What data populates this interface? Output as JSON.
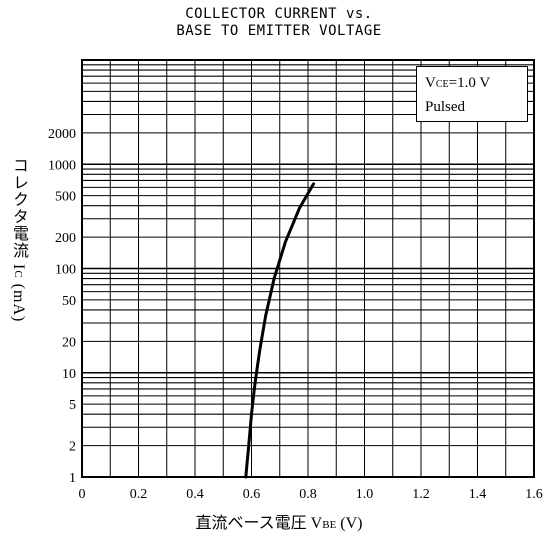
{
  "chart_data": {
    "type": "line",
    "title_line1": "COLLECTOR CURRENT vs.",
    "title_line2": "BASE TO EMITTER VOLTAGE",
    "ylabel_text": "コレクタ電流 I",
    "ylabel_sub": "C",
    "ylabel_unit": " (mA)",
    "xlabel_text": "直流ベース電圧 V",
    "xlabel_sub": "BE",
    "xlabel_unit": " (V)",
    "legend_v": "V",
    "legend_sub": "CE",
    "legend_value": "=1.0 V",
    "legend_pulsed": "Pulsed",
    "legend_position": "top-right",
    "y_scale": "log",
    "grid": true,
    "xlim": [
      0,
      1.6
    ],
    "ylim": [
      1,
      10000
    ],
    "x_ticks": [
      "0",
      "0.2",
      "0.4",
      "0.6",
      "0.8",
      "1.0",
      "1.2",
      "1.4",
      "1.6"
    ],
    "y_ticks": [
      "1",
      "2",
      "5",
      "10",
      "20",
      "50",
      "100",
      "200",
      "500",
      "1000",
      "2000"
    ],
    "series": [
      {
        "x": [
          0.58,
          0.59,
          0.6,
          0.61,
          0.62,
          0.63,
          0.65,
          0.68,
          0.72,
          0.77,
          0.82
        ],
        "y": [
          1,
          2,
          4,
          7,
          11,
          17,
          35,
          80,
          180,
          380,
          650
        ]
      }
    ]
  }
}
